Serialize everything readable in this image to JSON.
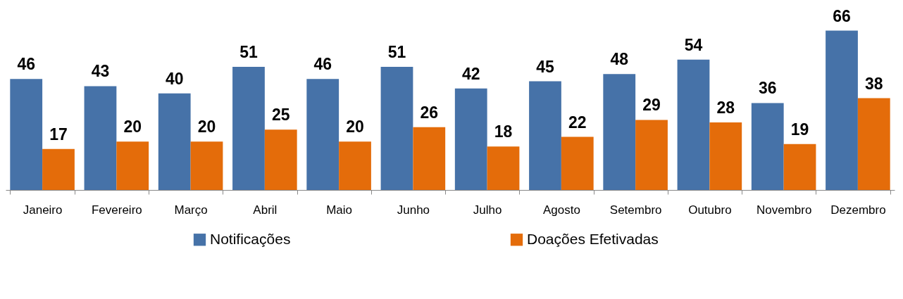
{
  "chart_data": {
    "type": "bar",
    "categories": [
      "Janeiro",
      "Fevereiro",
      "Março",
      "Abril",
      "Maio",
      "Junho",
      "Julho",
      "Agosto",
      "Setembro",
      "Outubro",
      "Novembro",
      "Dezembro"
    ],
    "series": [
      {
        "name": "Notificações",
        "color": "#4672a8",
        "values": [
          46,
          43,
          40,
          51,
          46,
          51,
          42,
          45,
          48,
          54,
          36,
          66
        ]
      },
      {
        "name": "Doações Efetivadas",
        "color": "#e46c0a",
        "values": [
          17,
          20,
          20,
          25,
          20,
          26,
          18,
          22,
          29,
          28,
          19,
          38
        ]
      }
    ],
    "data_labels": true,
    "legend": "bottom",
    "grid": false
  }
}
